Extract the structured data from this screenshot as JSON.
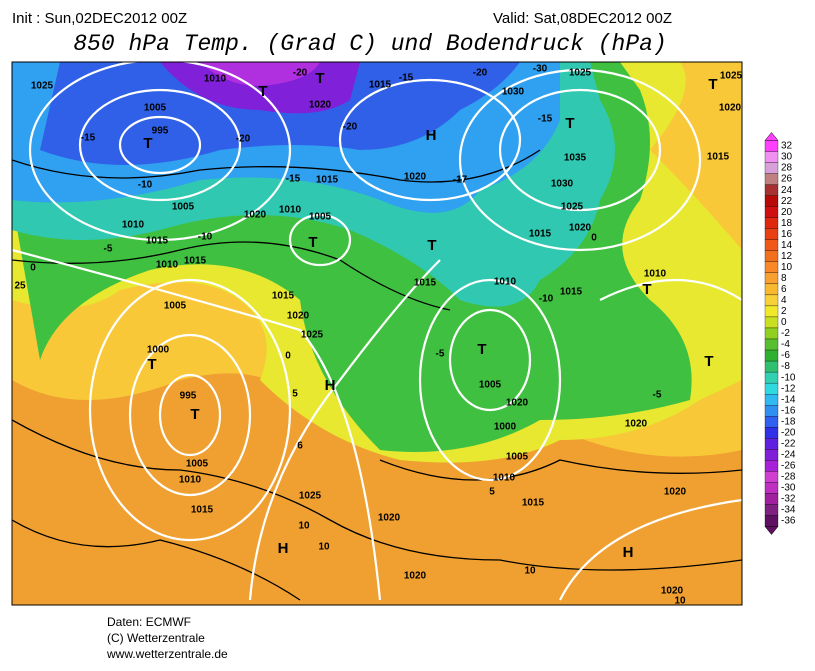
{
  "header": {
    "init": "Init : Sun,02DEC2012 00Z",
    "valid": "Valid: Sat,08DEC2012 00Z",
    "title": "850 hPa Temp. (Grad C) und Bodendruck (hPa)"
  },
  "footer": [
    "Daten: ECMWF",
    "(C) Wetterzentrale",
    "www.wetterzentrale.de"
  ],
  "colorbar": {
    "labels": [
      32,
      30,
      28,
      26,
      24,
      22,
      20,
      18,
      16,
      14,
      12,
      10,
      8,
      6,
      4,
      2,
      0,
      -2,
      -4,
      -6,
      -8,
      -10,
      -12,
      -14,
      -16,
      -18,
      -20,
      -22,
      -24,
      -26,
      -28,
      -30,
      -32,
      -34,
      -36
    ],
    "colors": [
      "#ff40ff",
      "#f090f0",
      "#d8a0d8",
      "#c08080",
      "#a83030",
      "#b80808",
      "#d01010",
      "#e02810",
      "#e84010",
      "#f05818",
      "#f07020",
      "#f88828",
      "#f8a030",
      "#f8b830",
      "#f8d038",
      "#f0e828",
      "#c8e020",
      "#90d020",
      "#58c030",
      "#30b030",
      "#30c070",
      "#30d0b0",
      "#30d8e0",
      "#30b8f0",
      "#3090f0",
      "#3060f0",
      "#3030e8",
      "#6020e0",
      "#8020d8",
      "#a820d8",
      "#d040d0",
      "#c030c0",
      "#a020a0",
      "#802080",
      "#601060"
    ]
  },
  "labels": [
    "1025",
    "1010",
    "1005",
    "995",
    "-15",
    "T",
    "-10",
    "1005",
    "1010",
    "1015",
    "-10",
    "-5",
    "0",
    "25",
    "1010",
    "1015",
    "1005",
    "1000",
    "T",
    "995",
    "T",
    "1005",
    "1010",
    "1015",
    "1020",
    "1025",
    "1015",
    "1010",
    "1020",
    "1005",
    "T",
    "H",
    "0",
    "5",
    "6",
    "1025",
    "10",
    "H",
    "10",
    "1020",
    "1020",
    "1015",
    "-15",
    "-20",
    "-30",
    "1025",
    "1030",
    "-15",
    "T",
    "1035",
    "1030",
    "1025",
    "1020",
    "0",
    "H",
    "1020",
    "-17",
    "1015",
    "T",
    "1015",
    "1010",
    "-10",
    "1015",
    "T",
    "-5",
    "1005",
    "1020",
    "1000",
    "1005",
    "1010",
    "5",
    "1015",
    "1010",
    "T",
    "T",
    "-5",
    "1020",
    "1020",
    "H",
    "1020",
    "10",
    "10",
    "1025",
    "T",
    "1020",
    "1015",
    "-20",
    "T",
    "T",
    "-20",
    "1020",
    "-20",
    "-15",
    "1015"
  ]
}
